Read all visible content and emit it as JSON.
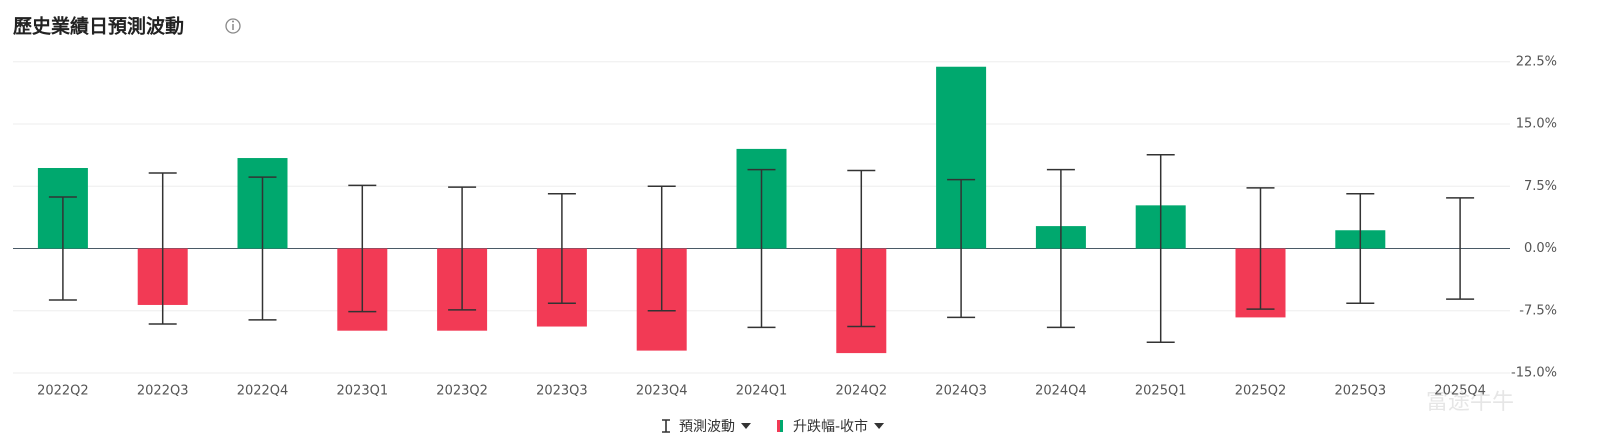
{
  "chart_data": {
    "type": "bar",
    "title": "歷史業績日預測波動",
    "categories": [
      "2022Q2",
      "2022Q3",
      "2022Q4",
      "2023Q1",
      "2023Q2",
      "2023Q3",
      "2023Q4",
      "2024Q1",
      "2024Q2",
      "2024Q3",
      "2024Q4",
      "2025Q1",
      "2025Q2",
      "2025Q3",
      "2025Q4"
    ],
    "series": [
      {
        "name": "預測波動",
        "type": "errorbar",
        "color": "#333333",
        "values": [
          6.2,
          9.1,
          8.6,
          7.6,
          7.4,
          6.6,
          7.5,
          9.5,
          9.4,
          8.3,
          9.5,
          11.3,
          7.3,
          6.6,
          6.1
        ]
      },
      {
        "name": "升跌幅-收市",
        "type": "bar",
        "color": "#00a86e",
        "negative_color": "#f23a55",
        "values": [
          9.7,
          -6.8,
          10.9,
          -9.9,
          -9.9,
          -9.4,
          -12.3,
          12.0,
          -12.6,
          21.9,
          2.7,
          5.2,
          -8.3,
          2.2,
          null
        ]
      }
    ],
    "ylim": [
      -15.6,
      25
    ],
    "yticks": [
      {
        "value": 22.5,
        "label": "22.5%"
      },
      {
        "value": 15,
        "label": "15.0%"
      },
      {
        "value": 7.5,
        "label": "7.5%"
      },
      {
        "value": 0,
        "label": "0.0%"
      },
      {
        "value": -7.5,
        "label": "-7.5%"
      },
      {
        "value": -15,
        "label": "-15.0%"
      }
    ],
    "grid": true,
    "watermark": "富途牛牛"
  }
}
